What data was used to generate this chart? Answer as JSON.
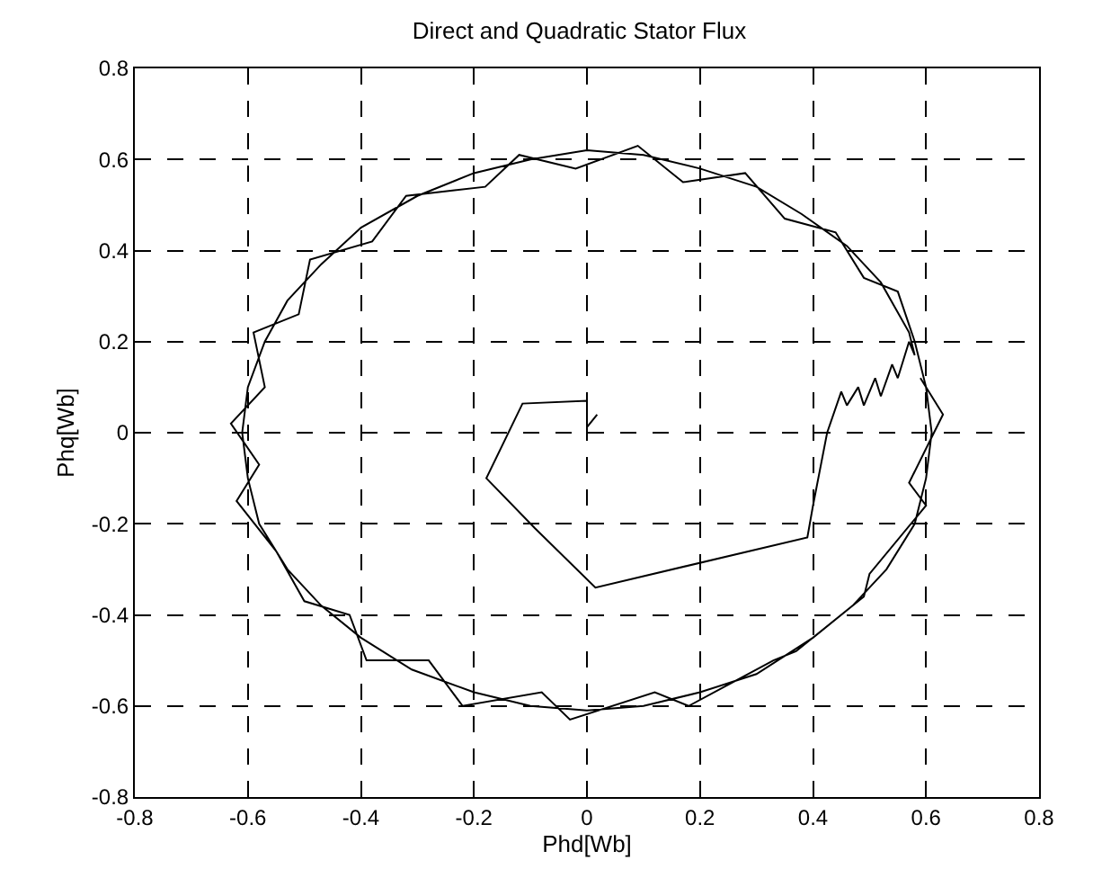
{
  "chart_data": {
    "type": "line",
    "title": "Direct and Quadratic Stator Flux",
    "xlabel": "Phd[Wb]",
    "ylabel": "Phq[Wb]",
    "xlim": [
      -0.8,
      0.8
    ],
    "ylim": [
      -0.8,
      0.8
    ],
    "xticks": [
      -0.8,
      -0.6,
      -0.4,
      -0.2,
      0,
      0.2,
      0.4,
      0.6,
      0.8
    ],
    "yticks": [
      -0.8,
      -0.6,
      -0.4,
      -0.2,
      0,
      0.2,
      0.4,
      0.6,
      0.8
    ],
    "grid": true,
    "marker": "none",
    "line_style": "solid",
    "series": [
      {
        "color": "#000000",
        "x": [
          0.018,
          0,
          0,
          -0.114,
          -0.178,
          -0.092,
          0.015,
          0.39,
          0.4,
          0.425,
          0.45,
          0.46,
          0.48,
          0.49,
          0.51,
          0.52,
          0.54,
          0.55,
          0.57,
          0.58,
          0.57,
          0.52,
          0.46,
          0.38,
          0.3,
          0.2,
          0.1,
          0,
          -0.1,
          -0.2,
          -0.3,
          -0.4,
          -0.47,
          -0.53,
          -0.57,
          -0.6,
          -0.61,
          -0.6,
          -0.58,
          -0.53,
          -0.47,
          -0.4,
          -0.31,
          -0.2,
          -0.1,
          0,
          0.1,
          0.2,
          0.3,
          0.4,
          0.47,
          0.53,
          0.58,
          0.6,
          0.61,
          0.6,
          0.58,
          0.55,
          0.49,
          0.44,
          0.35,
          0.28,
          0.17,
          0.09,
          -0.02,
          -0.12,
          -0.18,
          -0.32,
          -0.38,
          -0.49,
          -0.51,
          -0.59,
          -0.57,
          -0.63,
          -0.58,
          -0.62,
          -0.55,
          -0.5,
          -0.42,
          -0.39,
          -0.28,
          -0.22,
          -0.08,
          -0.03,
          0.12,
          0.18,
          0.33,
          0.37,
          0.49,
          0.5,
          0.6,
          0.57,
          0.63,
          0.59
        ],
        "values": [
          0.04,
          0.012,
          0.07,
          0.064,
          -0.1,
          -0.21,
          -0.34,
          -0.23,
          -0.16,
          0,
          0.09,
          0.06,
          0.1,
          0.06,
          0.12,
          0.08,
          0.15,
          0.12,
          0.2,
          0.17,
          0.22,
          0.33,
          0.41,
          0.48,
          0.54,
          0.58,
          0.61,
          0.62,
          0.6,
          0.57,
          0.52,
          0.45,
          0.37,
          0.29,
          0.2,
          0.1,
          0,
          -0.1,
          -0.2,
          -0.3,
          -0.38,
          -0.45,
          -0.52,
          -0.57,
          -0.6,
          -0.61,
          -0.6,
          -0.57,
          -0.53,
          -0.45,
          -0.38,
          -0.3,
          -0.2,
          -0.1,
          0,
          0.1,
          0.2,
          0.31,
          0.34,
          0.44,
          0.47,
          0.57,
          0.55,
          0.63,
          0.58,
          0.61,
          0.54,
          0.52,
          0.42,
          0.38,
          0.26,
          0.22,
          0.1,
          0.02,
          -0.07,
          -0.15,
          -0.26,
          -0.37,
          -0.4,
          -0.5,
          -0.5,
          -0.6,
          -0.57,
          -0.63,
          -0.57,
          -0.6,
          -0.5,
          -0.48,
          -0.36,
          -0.31,
          -0.16,
          -0.11,
          0.04,
          0.12
        ]
      }
    ]
  }
}
